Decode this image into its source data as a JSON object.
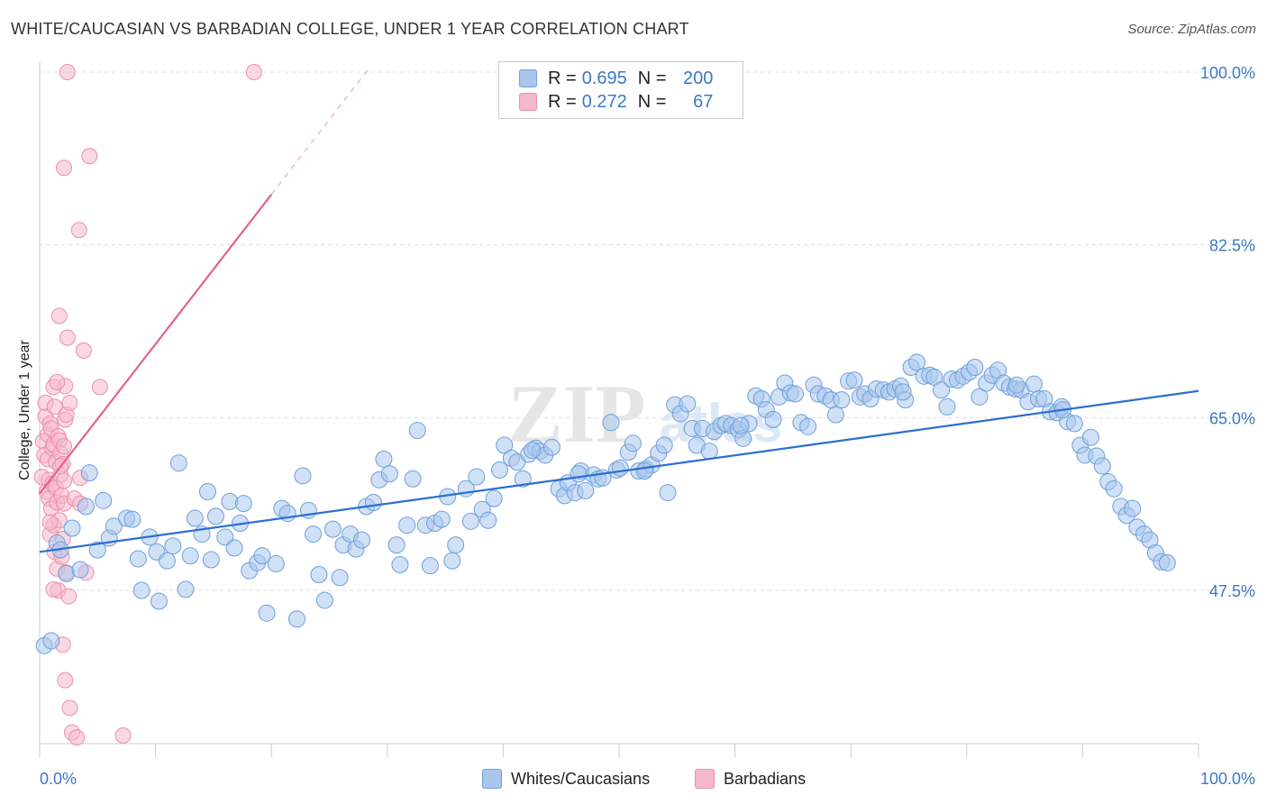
{
  "header": {
    "title": "WHITE/CAUCASIAN VS BARBADIAN COLLEGE, UNDER 1 YEAR CORRELATION CHART",
    "source": "Source: ZipAtlas.com"
  },
  "legend": {
    "rows": [
      {
        "r_label": "R =",
        "r_value": "0.695",
        "n_label": "N =",
        "n_value": "200"
      },
      {
        "r_label": "R =",
        "r_value": "0.272",
        "n_label": "N =",
        "n_value": "67"
      }
    ]
  },
  "bottom_legend": {
    "items": [
      {
        "label": "Whites/Caucasians"
      },
      {
        "label": "Barbadians"
      }
    ]
  },
  "colors": {
    "blue_fill": "#a9c6ec",
    "blue_stroke": "#6e9fdc",
    "blue_line": "#2a6fd1",
    "pink_fill": "#f6b8cb",
    "pink_stroke": "#ec8fac",
    "pink_line": "#e3628f",
    "tick_label": "#3a78c9",
    "grid": "#dddddd"
  },
  "chart_data": {
    "type": "scatter",
    "title": "WHITE/CAUCASIAN VS BARBADIAN COLLEGE, UNDER 1 YEAR CORRELATION CHART",
    "xlabel": "",
    "ylabel": "College, Under 1 year",
    "xlim": [
      0,
      100
    ],
    "ylim": [
      30,
      102
    ],
    "x_tick_labels": [
      "0.0%",
      "100.0%"
    ],
    "y_ticks": [
      47.5,
      65.0,
      82.5,
      100.0
    ],
    "y_tick_labels": [
      "47.5%",
      "65.0%",
      "82.5%",
      "100.0%"
    ],
    "grid": "horizontal dashed",
    "watermark": "ZIPatlas",
    "series": [
      {
        "name": "Whites/Caucasians",
        "r": 0.695,
        "n": 200,
        "trend": {
          "x": [
            0,
            100
          ],
          "y": [
            51.4,
            67.7
          ]
        },
        "points": [
          [
            0.4,
            41.9
          ],
          [
            1,
            42.4
          ],
          [
            1.5,
            52.3
          ],
          [
            1.8,
            51.6
          ],
          [
            2.3,
            49.2
          ],
          [
            2.8,
            53.8
          ],
          [
            3.5,
            49.6
          ],
          [
            4,
            56
          ],
          [
            4.3,
            59.4
          ],
          [
            5,
            51.6
          ],
          [
            5.5,
            56.6
          ],
          [
            6,
            52.8
          ],
          [
            6.4,
            54
          ],
          [
            7.5,
            54.8
          ],
          [
            8,
            54.7
          ],
          [
            8.5,
            50.7
          ],
          [
            8.8,
            47.5
          ],
          [
            9.5,
            52.9
          ],
          [
            10.1,
            51.4
          ],
          [
            10.3,
            46.4
          ],
          [
            11,
            50.5
          ],
          [
            11.5,
            52
          ],
          [
            12,
            60.4
          ],
          [
            12.6,
            47.6
          ],
          [
            13,
            51
          ],
          [
            13.4,
            54.8
          ],
          [
            14,
            53.2
          ],
          [
            14.5,
            57.5
          ],
          [
            14.8,
            50.6
          ],
          [
            15.2,
            55
          ],
          [
            16,
            52.9
          ],
          [
            16.4,
            56.5
          ],
          [
            16.8,
            51.8
          ],
          [
            17.3,
            54.3
          ],
          [
            17.6,
            56.3
          ],
          [
            18.1,
            49.5
          ],
          [
            18.8,
            50.3
          ],
          [
            19.2,
            51
          ],
          [
            19.6,
            45.2
          ],
          [
            20.4,
            50.2
          ],
          [
            20.9,
            55.8
          ],
          [
            21.4,
            55.3
          ],
          [
            22.2,
            44.6
          ],
          [
            22.7,
            59.1
          ],
          [
            23.2,
            55.6
          ],
          [
            23.6,
            53.2
          ],
          [
            24.1,
            49.1
          ],
          [
            24.6,
            46.5
          ],
          [
            25.3,
            53.7
          ],
          [
            25.9,
            48.8
          ],
          [
            26.2,
            52.1
          ],
          [
            26.8,
            53.2
          ],
          [
            27.3,
            51.7
          ],
          [
            27.8,
            52.6
          ],
          [
            28.2,
            56
          ],
          [
            28.8,
            56.4
          ],
          [
            29.3,
            58.7
          ],
          [
            29.7,
            60.8
          ],
          [
            30.2,
            59.3
          ],
          [
            30.8,
            52.1
          ],
          [
            31.1,
            50.1
          ],
          [
            31.7,
            54.1
          ],
          [
            32.2,
            58.8
          ],
          [
            32.6,
            63.7
          ],
          [
            33.3,
            54.1
          ],
          [
            33.7,
            50
          ],
          [
            34.1,
            54.3
          ],
          [
            34.7,
            54.7
          ],
          [
            35.2,
            57
          ],
          [
            35.6,
            50.5
          ],
          [
            35.9,
            52.1
          ],
          [
            36.8,
            57.8
          ],
          [
            37.2,
            54.5
          ],
          [
            37.7,
            59
          ],
          [
            38.2,
            55.7
          ],
          [
            38.7,
            54.6
          ],
          [
            39.2,
            56.8
          ],
          [
            39.7,
            59.7
          ],
          [
            40.1,
            62.2
          ],
          [
            40.7,
            60.9
          ],
          [
            41.2,
            60.5
          ],
          [
            41.7,
            58.8
          ],
          [
            42.2,
            61.3
          ],
          [
            42.8,
            61.9
          ],
          [
            43.2,
            61.6
          ],
          [
            43.6,
            61.2
          ],
          [
            44.2,
            62
          ],
          [
            44.8,
            57.8
          ],
          [
            45.3,
            57.1
          ],
          [
            45.6,
            58.4
          ],
          [
            46.2,
            57.4
          ],
          [
            46.7,
            59.6
          ],
          [
            47.1,
            57.6
          ],
          [
            47.8,
            59.2
          ],
          [
            48.2,
            58.8
          ],
          [
            48.6,
            58.9
          ],
          [
            49.3,
            64.5
          ],
          [
            49.8,
            59.7
          ],
          [
            50.1,
            59.9
          ],
          [
            50.8,
            61.5
          ],
          [
            51.2,
            62.4
          ],
          [
            51.7,
            59.6
          ],
          [
            52.3,
            59.8
          ],
          [
            52.8,
            60.2
          ],
          [
            53.4,
            61.4
          ],
          [
            53.9,
            62.2
          ],
          [
            54.2,
            57.4
          ],
          [
            54.8,
            66.3
          ],
          [
            55.3,
            65.4
          ],
          [
            55.9,
            66.4
          ],
          [
            56.3,
            63.9
          ],
          [
            56.7,
            62.2
          ],
          [
            57.2,
            63.9
          ],
          [
            57.8,
            61.6
          ],
          [
            58.2,
            63.6
          ],
          [
            58.8,
            64.2
          ],
          [
            59.2,
            64.4
          ],
          [
            59.7,
            64.2
          ],
          [
            60.3,
            63.8
          ],
          [
            60.7,
            62.9
          ],
          [
            61.2,
            64.4
          ],
          [
            61.8,
            67.2
          ],
          [
            62.3,
            66.9
          ],
          [
            62.7,
            65.8
          ],
          [
            63.3,
            64.8
          ],
          [
            63.8,
            67.1
          ],
          [
            64.3,
            68.5
          ],
          [
            64.8,
            67.5
          ],
          [
            65.2,
            67.4
          ],
          [
            65.7,
            64.5
          ],
          [
            66.3,
            64.1
          ],
          [
            66.8,
            68.3
          ],
          [
            67.2,
            67.4
          ],
          [
            67.8,
            67.2
          ],
          [
            68.3,
            66.8
          ],
          [
            68.7,
            65.3
          ],
          [
            69.2,
            66.8
          ],
          [
            69.8,
            68.7
          ],
          [
            70.3,
            68.8
          ],
          [
            70.8,
            67.1
          ],
          [
            71.2,
            67.4
          ],
          [
            71.7,
            66.9
          ],
          [
            72.2,
            67.9
          ],
          [
            72.8,
            67.8
          ],
          [
            73.3,
            67.6
          ],
          [
            73.8,
            67.9
          ],
          [
            74.3,
            68.2
          ],
          [
            74.7,
            66.8
          ],
          [
            75.2,
            70.1
          ],
          [
            75.7,
            70.6
          ],
          [
            76.3,
            69.2
          ],
          [
            76.8,
            69.3
          ],
          [
            77.2,
            69.1
          ],
          [
            77.8,
            67.8
          ],
          [
            78.3,
            66.1
          ],
          [
            78.7,
            68.9
          ],
          [
            79.2,
            68.8
          ],
          [
            79.7,
            69.2
          ],
          [
            80.2,
            69.6
          ],
          [
            80.7,
            70.1
          ],
          [
            81.1,
            67.1
          ],
          [
            81.7,
            68.5
          ],
          [
            82.2,
            69.3
          ],
          [
            82.7,
            69.8
          ],
          [
            83.2,
            68.5
          ],
          [
            83.7,
            68.1
          ],
          [
            84.2,
            67.9
          ],
          [
            84.7,
            67.8
          ],
          [
            85.3,
            66.6
          ],
          [
            85.8,
            68.4
          ],
          [
            86.2,
            66.9
          ],
          [
            86.7,
            66.9
          ],
          [
            87.2,
            65.6
          ],
          [
            87.8,
            65.5
          ],
          [
            88.2,
            66.1
          ],
          [
            88.7,
            64.6
          ],
          [
            89.3,
            64.4
          ],
          [
            89.8,
            62.2
          ],
          [
            90.2,
            61.2
          ],
          [
            90.7,
            63
          ],
          [
            91.2,
            61.1
          ],
          [
            91.7,
            60.1
          ],
          [
            92.2,
            58.5
          ],
          [
            92.7,
            57.8
          ],
          [
            93.3,
            56
          ],
          [
            93.8,
            55.1
          ],
          [
            94.3,
            55.8
          ],
          [
            94.7,
            53.9
          ],
          [
            95.3,
            53.2
          ],
          [
            95.8,
            52.6
          ],
          [
            96.3,
            51.3
          ],
          [
            96.8,
            50.4
          ],
          [
            97.3,
            50.3
          ],
          [
            42.5,
            61.7
          ],
          [
            46.5,
            59.3
          ],
          [
            52.2,
            59.6
          ],
          [
            60.5,
            64.2
          ],
          [
            74.5,
            67.6
          ],
          [
            84.3,
            68.3
          ],
          [
            88.3,
            65.8
          ]
        ]
      },
      {
        "name": "Barbadians",
        "r": 0.272,
        "n": 67,
        "trend": {
          "x": [
            0,
            20
          ],
          "y": [
            57.3,
            87.6
          ]
        },
        "trend_dashed": {
          "x": [
            20,
            28.5
          ],
          "y": [
            87.6,
            100.5
          ]
        },
        "points": [
          [
            0.2,
            59
          ],
          [
            0.3,
            62.6
          ],
          [
            0.4,
            61.2
          ],
          [
            0.5,
            65.1
          ],
          [
            0.5,
            66.5
          ],
          [
            0.6,
            57.5
          ],
          [
            0.7,
            60.8
          ],
          [
            0.7,
            63.3
          ],
          [
            0.8,
            56.8
          ],
          [
            0.8,
            58.7
          ],
          [
            0.9,
            64.4
          ],
          [
            0.9,
            53.2
          ],
          [
            1,
            55.8
          ],
          [
            1,
            63.9
          ],
          [
            1.1,
            58.3
          ],
          [
            1.1,
            61.9
          ],
          [
            1.2,
            54.1
          ],
          [
            1.2,
            62.3
          ],
          [
            1.3,
            51.4
          ],
          [
            1.3,
            66.1
          ],
          [
            1.4,
            57.9
          ],
          [
            1.4,
            60.5
          ],
          [
            1.5,
            49.7
          ],
          [
            1.5,
            56.4
          ],
          [
            1.6,
            63.1
          ],
          [
            1.6,
            47.5
          ],
          [
            1.7,
            62.7
          ],
          [
            1.7,
            54.6
          ],
          [
            1.8,
            61.4
          ],
          [
            1.8,
            59.2
          ],
          [
            1.9,
            57.1
          ],
          [
            1.9,
            50.9
          ],
          [
            2,
            60.3
          ],
          [
            2,
            52.7
          ],
          [
            2.1,
            56.3
          ],
          [
            2.1,
            62.1
          ],
          [
            2.2,
            64.8
          ],
          [
            2.2,
            68.2
          ],
          [
            2.3,
            65.3
          ],
          [
            2.3,
            49.3
          ],
          [
            1.2,
            68.1
          ],
          [
            1.5,
            68.6
          ],
          [
            1.7,
            75.3
          ],
          [
            2,
            42
          ],
          [
            2.2,
            38.4
          ],
          [
            2.4,
            73.1
          ],
          [
            2.6,
            35.6
          ],
          [
            2.8,
            33.1
          ],
          [
            3,
            56.8
          ],
          [
            3.2,
            32.6
          ],
          [
            3.5,
            56.3
          ],
          [
            3.5,
            58.9
          ],
          [
            3.8,
            71.8
          ],
          [
            3.4,
            84
          ],
          [
            4,
            49.3
          ],
          [
            4.3,
            91.5
          ],
          [
            5.2,
            68.1
          ],
          [
            7.2,
            32.8
          ],
          [
            2.1,
            90.3
          ],
          [
            2.4,
            100
          ],
          [
            18.5,
            100
          ],
          [
            2.6,
            66.5
          ],
          [
            2.1,
            58.6
          ],
          [
            1.2,
            47.6
          ],
          [
            2.5,
            46.9
          ],
          [
            0.9,
            54.4
          ],
          [
            1.8,
            60.1
          ]
        ]
      }
    ]
  }
}
